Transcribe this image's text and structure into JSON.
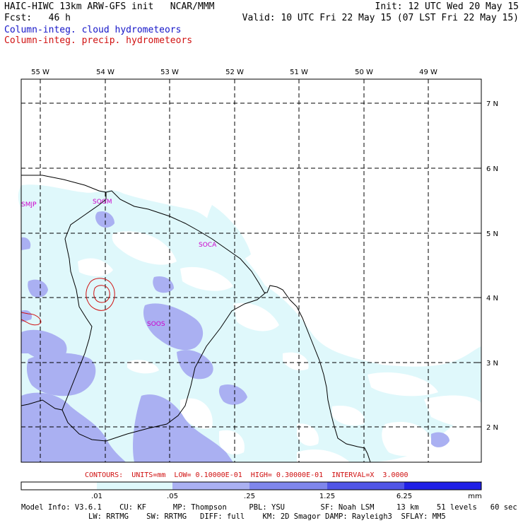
{
  "header": {
    "title": "HAIC-HIWC 13km ARW-GFS init   NCAR/MMM",
    "init": "Init: 12 UTC Wed 20 May 15",
    "fcst": "Fcst:   46 h",
    "valid": "Valid: 10 UTC Fri 22 May 15 (07 LST Fri 22 May 15)",
    "line_blue": "Column-integ. cloud hydrometeors",
    "line_red": "Column-integ. precip. hydrometeors"
  },
  "colors": {
    "blue_text": "#1515c8",
    "red_text": "#d01010",
    "station": "#cc00cc",
    "shade_1": "#dff8fb",
    "shade_2": "#aab0f2",
    "shade_3": "#7f86ec",
    "shade_4": "#2020e6"
  },
  "map": {
    "lon_labels": [
      "55 W",
      "54 W",
      "53 W",
      "52 W",
      "51 W",
      "50 W",
      "49 W"
    ],
    "lat_labels": [
      "7 N",
      "6 N",
      "5 N",
      "4 N",
      "3 N",
      "2 N"
    ],
    "stations": [
      "SMJP",
      "SOGM",
      "SOCA",
      "SOOS"
    ]
  },
  "contours_line": "CONTOURS:  UNITS=mm  LOW= 0.10000E-01  HIGH= 0.30000E-01  INTERVAL=X  3.0000",
  "colorbar": {
    "ticks": [
      ".01",
      ".05",
      ".25",
      "1.25",
      "6.25"
    ],
    "unit": "mm"
  },
  "model_info": {
    "line1": "Model Info: V3.6.1    CU: KF      MP: Thompson     PBL: YSU        SF: Noah LSM     13 km    51 levels   60 sec",
    "line2": "LW: RRTMG    SW: RRTMG   DIFF: full    KM: 2D Smagor DAMP: Rayleigh3  SFLAY: MM5"
  }
}
